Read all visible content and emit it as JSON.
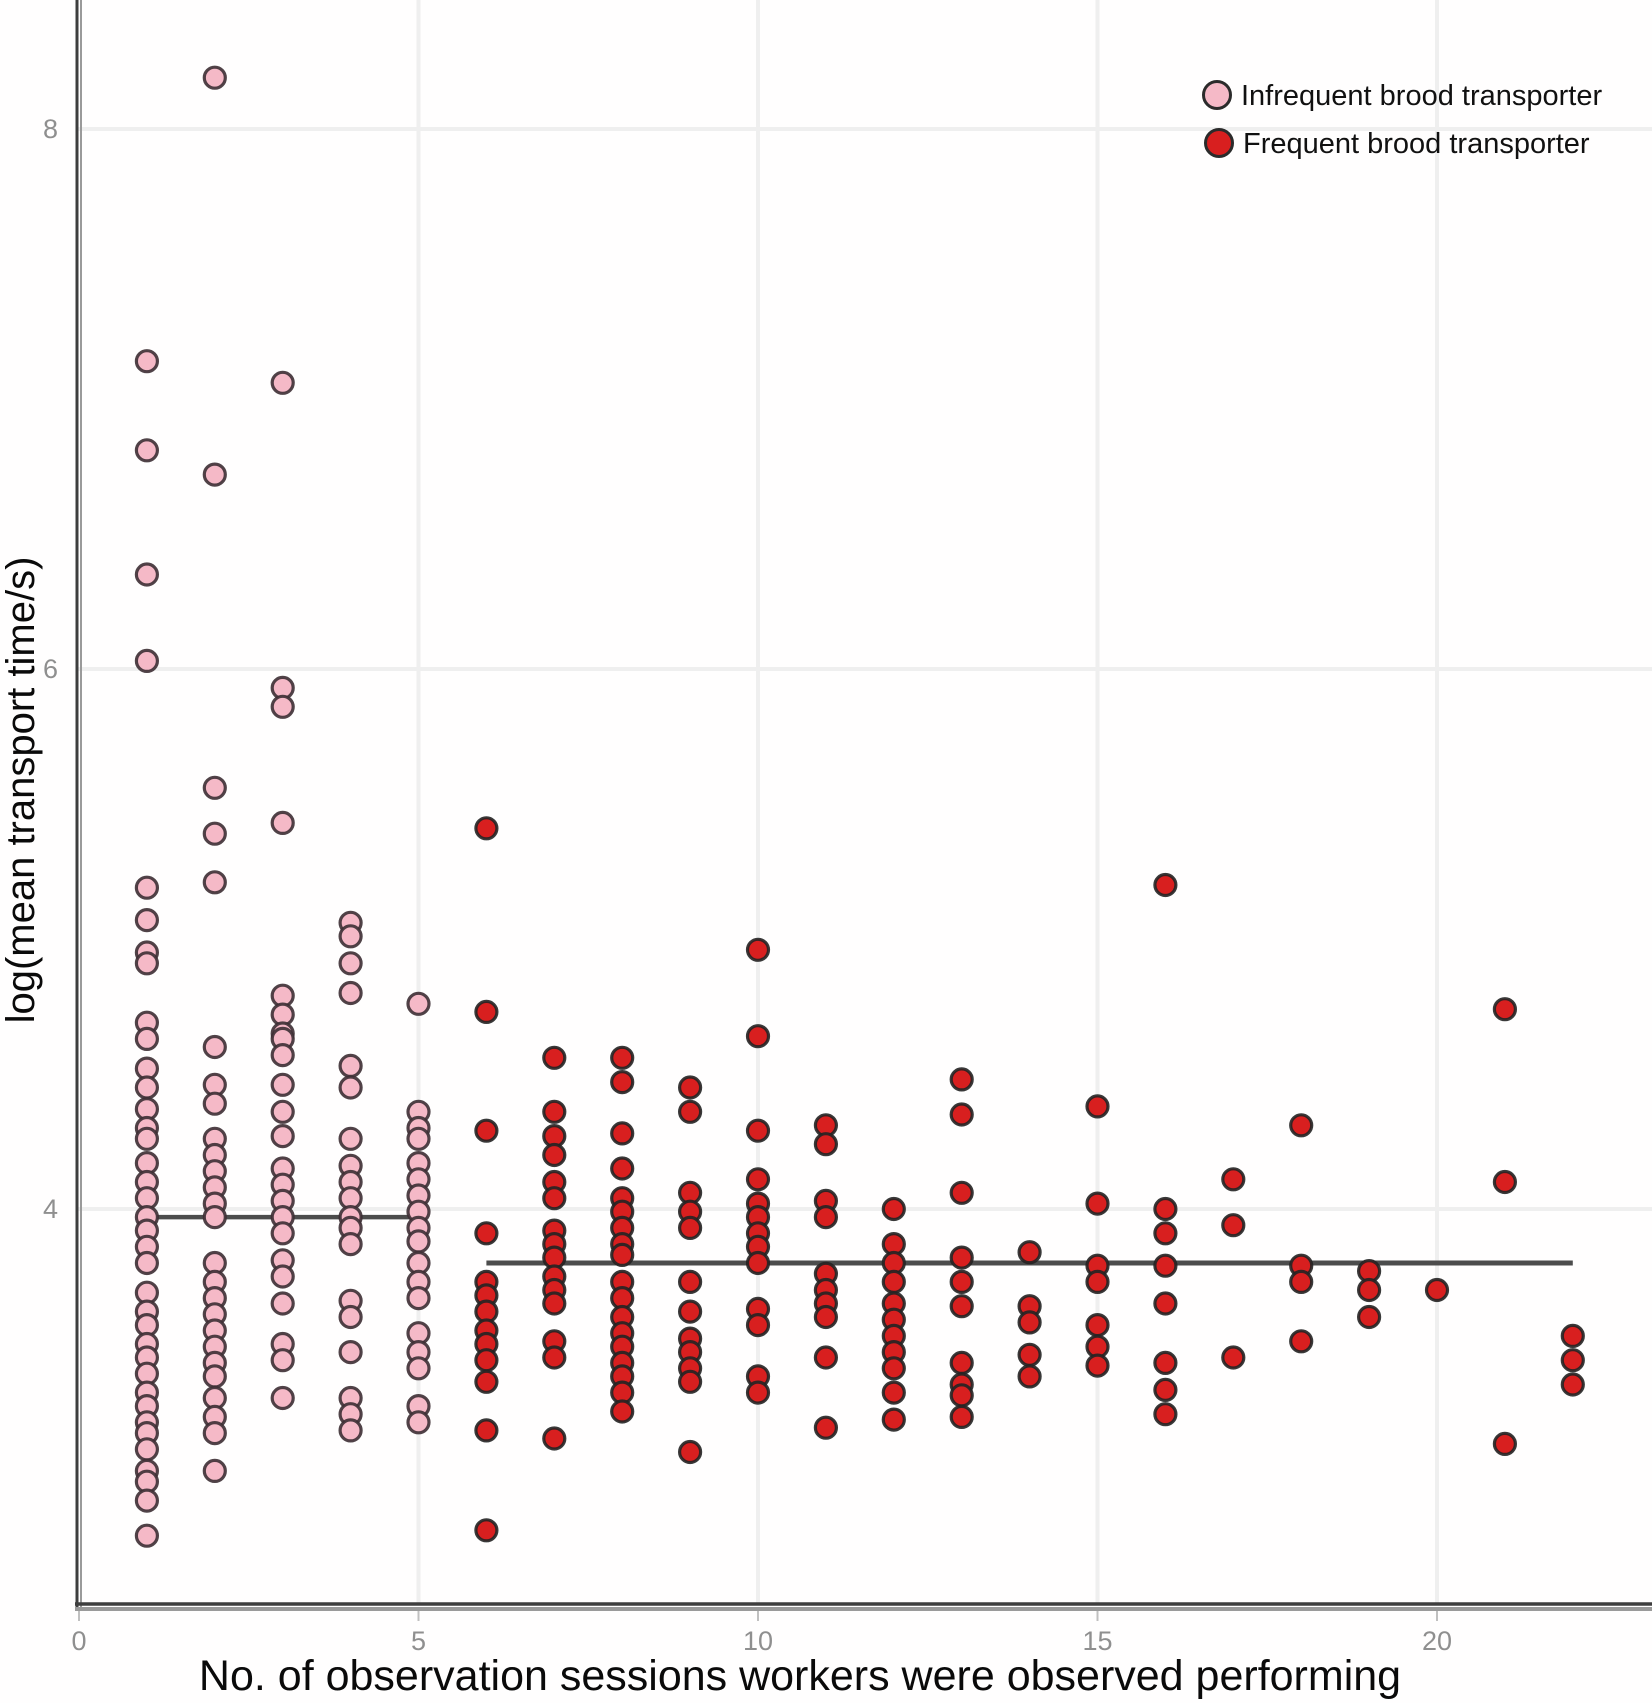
{
  "chart_data": {
    "type": "scatter",
    "title": "",
    "xlabel": "No. of observation sessions workers were observed performing",
    "ylabel": "log(mean transport time/s)",
    "xlim": [
      -0.05,
      23.2
    ],
    "ylim": [
      2.5,
      8.45
    ],
    "x_ticks": [
      0,
      5,
      10,
      15,
      20
    ],
    "x_tick_labels": [
      "0",
      "5",
      "10",
      "15",
      "20"
    ],
    "y_ticks": [
      8,
      6,
      4
    ],
    "y_tick_labels": [
      "8",
      "6",
      "4"
    ],
    "grid": true,
    "legend_position": "top-right",
    "colors": {
      "infrequent_fill": "#f5b9c7",
      "infrequent_stroke": "#3d2f34",
      "frequent_fill": "#d81f1f",
      "frequent_stroke": "#242424",
      "mean_line": "#4c4c4c",
      "gridline": "#efefef",
      "axis_dark": "#3e3e3e",
      "axis_light": "#9a9a9a",
      "tick_text": "#8f8f8f"
    },
    "series": [
      {
        "name": "Infrequent brood transporter",
        "color": "#f5b9c7",
        "points": [
          [
            1,
            7.14
          ],
          [
            1,
            6.81
          ],
          [
            1,
            6.35
          ],
          [
            1,
            6.03
          ],
          [
            1,
            5.19
          ],
          [
            1,
            5.07
          ],
          [
            1,
            4.95
          ],
          [
            1,
            4.91
          ],
          [
            1,
            4.69
          ],
          [
            1,
            4.63
          ],
          [
            1,
            4.52
          ],
          [
            1,
            4.45
          ],
          [
            1,
            4.37
          ],
          [
            1,
            4.3
          ],
          [
            1,
            4.26
          ],
          [
            1,
            4.17
          ],
          [
            1,
            4.1
          ],
          [
            1,
            4.04
          ],
          [
            1,
            3.97
          ],
          [
            1,
            3.92
          ],
          [
            1,
            3.86
          ],
          [
            1,
            3.8
          ],
          [
            1,
            3.69
          ],
          [
            1,
            3.62
          ],
          [
            1,
            3.57
          ],
          [
            1,
            3.5
          ],
          [
            1,
            3.45
          ],
          [
            1,
            3.39
          ],
          [
            1,
            3.32
          ],
          [
            1,
            3.27
          ],
          [
            1,
            3.21
          ],
          [
            1,
            3.17
          ],
          [
            1,
            3.11
          ],
          [
            1,
            3.03
          ],
          [
            1,
            2.99
          ],
          [
            1,
            2.92
          ],
          [
            1,
            2.79
          ],
          [
            2,
            8.19
          ],
          [
            2,
            6.72
          ],
          [
            2,
            5.56
          ],
          [
            2,
            5.39
          ],
          [
            2,
            5.21
          ],
          [
            2,
            4.6
          ],
          [
            2,
            4.46
          ],
          [
            2,
            4.39
          ],
          [
            2,
            4.26
          ],
          [
            2,
            4.2
          ],
          [
            2,
            4.14
          ],
          [
            2,
            4.08
          ],
          [
            2,
            4.02
          ],
          [
            2,
            3.97
          ],
          [
            2,
            3.8
          ],
          [
            2,
            3.73
          ],
          [
            2,
            3.67
          ],
          [
            2,
            3.61
          ],
          [
            2,
            3.55
          ],
          [
            2,
            3.49
          ],
          [
            2,
            3.43
          ],
          [
            2,
            3.38
          ],
          [
            2,
            3.3
          ],
          [
            2,
            3.23
          ],
          [
            2,
            3.17
          ],
          [
            2,
            3.03
          ],
          [
            3,
            7.06
          ],
          [
            3,
            5.93
          ],
          [
            3,
            5.86
          ],
          [
            3,
            5.43
          ],
          [
            3,
            4.79
          ],
          [
            3,
            4.72
          ],
          [
            3,
            4.65
          ],
          [
            3,
            4.63
          ],
          [
            3,
            4.57
          ],
          [
            3,
            4.46
          ],
          [
            3,
            4.36
          ],
          [
            3,
            4.27
          ],
          [
            3,
            4.15
          ],
          [
            3,
            4.09
          ],
          [
            3,
            4.03
          ],
          [
            3,
            3.97
          ],
          [
            3,
            3.91
          ],
          [
            3,
            3.81
          ],
          [
            3,
            3.75
          ],
          [
            3,
            3.65
          ],
          [
            3,
            3.5
          ],
          [
            3,
            3.44
          ],
          [
            3,
            3.3
          ],
          [
            4,
            5.06
          ],
          [
            4,
            5.01
          ],
          [
            4,
            4.91
          ],
          [
            4,
            4.8
          ],
          [
            4,
            4.53
          ],
          [
            4,
            4.45
          ],
          [
            4,
            4.26
          ],
          [
            4,
            4.16
          ],
          [
            4,
            4.1
          ],
          [
            4,
            4.04
          ],
          [
            4,
            3.97
          ],
          [
            4,
            3.93
          ],
          [
            4,
            3.87
          ],
          [
            4,
            3.66
          ],
          [
            4,
            3.6
          ],
          [
            4,
            3.47
          ],
          [
            4,
            3.3
          ],
          [
            4,
            3.24
          ],
          [
            4,
            3.18
          ],
          [
            5,
            4.76
          ],
          [
            5,
            4.36
          ],
          [
            5,
            4.3
          ],
          [
            5,
            4.26
          ],
          [
            5,
            4.17
          ],
          [
            5,
            4.11
          ],
          [
            5,
            4.05
          ],
          [
            5,
            3.99
          ],
          [
            5,
            3.93
          ],
          [
            5,
            3.88
          ],
          [
            5,
            3.8
          ],
          [
            5,
            3.73
          ],
          [
            5,
            3.67
          ],
          [
            5,
            3.54
          ],
          [
            5,
            3.47
          ],
          [
            5,
            3.41
          ],
          [
            5,
            3.27
          ],
          [
            5,
            3.21
          ]
        ]
      },
      {
        "name": "Frequent brood transporter",
        "color": "#d81f1f",
        "points": [
          [
            6,
            5.41
          ],
          [
            6,
            4.73
          ],
          [
            6,
            4.29
          ],
          [
            6,
            3.91
          ],
          [
            6,
            3.73
          ],
          [
            6,
            3.68
          ],
          [
            6,
            3.62
          ],
          [
            6,
            3.55
          ],
          [
            6,
            3.5
          ],
          [
            6,
            3.44
          ],
          [
            6,
            3.36
          ],
          [
            6,
            3.18
          ],
          [
            6,
            2.81
          ],
          [
            7,
            4.56
          ],
          [
            7,
            4.36
          ],
          [
            7,
            4.27
          ],
          [
            7,
            4.2
          ],
          [
            7,
            4.1
          ],
          [
            7,
            4.04
          ],
          [
            7,
            3.92
          ],
          [
            7,
            3.87
          ],
          [
            7,
            3.82
          ],
          [
            7,
            3.75
          ],
          [
            7,
            3.7
          ],
          [
            7,
            3.65
          ],
          [
            7,
            3.51
          ],
          [
            7,
            3.45
          ],
          [
            7,
            3.15
          ],
          [
            8,
            4.56
          ],
          [
            8,
            4.47
          ],
          [
            8,
            4.28
          ],
          [
            8,
            4.15
          ],
          [
            8,
            4.04
          ],
          [
            8,
            3.99
          ],
          [
            8,
            3.93
          ],
          [
            8,
            3.87
          ],
          [
            8,
            3.83
          ],
          [
            8,
            3.73
          ],
          [
            8,
            3.67
          ],
          [
            8,
            3.6
          ],
          [
            8,
            3.54
          ],
          [
            8,
            3.49
          ],
          [
            8,
            3.43
          ],
          [
            8,
            3.38
          ],
          [
            8,
            3.32
          ],
          [
            8,
            3.25
          ],
          [
            9,
            4.45
          ],
          [
            9,
            4.36
          ],
          [
            9,
            4.06
          ],
          [
            9,
            3.99
          ],
          [
            9,
            3.93
          ],
          [
            9,
            3.73
          ],
          [
            9,
            3.62
          ],
          [
            9,
            3.52
          ],
          [
            9,
            3.47
          ],
          [
            9,
            3.41
          ],
          [
            9,
            3.36
          ],
          [
            9,
            3.1
          ],
          [
            10,
            4.96
          ],
          [
            10,
            4.64
          ],
          [
            10,
            4.29
          ],
          [
            10,
            4.11
          ],
          [
            10,
            4.02
          ],
          [
            10,
            3.97
          ],
          [
            10,
            3.91
          ],
          [
            10,
            3.86
          ],
          [
            10,
            3.8
          ],
          [
            10,
            3.63
          ],
          [
            10,
            3.57
          ],
          [
            10,
            3.38
          ],
          [
            10,
            3.32
          ],
          [
            11,
            4.31
          ],
          [
            11,
            4.24
          ],
          [
            11,
            4.03
          ],
          [
            11,
            3.97
          ],
          [
            11,
            3.76
          ],
          [
            11,
            3.7
          ],
          [
            11,
            3.65
          ],
          [
            11,
            3.6
          ],
          [
            11,
            3.45
          ],
          [
            11,
            3.19
          ],
          [
            12,
            4.0
          ],
          [
            12,
            3.87
          ],
          [
            12,
            3.8
          ],
          [
            12,
            3.73
          ],
          [
            12,
            3.65
          ],
          [
            12,
            3.59
          ],
          [
            12,
            3.53
          ],
          [
            12,
            3.47
          ],
          [
            12,
            3.41
          ],
          [
            12,
            3.32
          ],
          [
            12,
            3.22
          ],
          [
            13,
            4.48
          ],
          [
            13,
            4.35
          ],
          [
            13,
            4.06
          ],
          [
            13,
            3.82
          ],
          [
            13,
            3.73
          ],
          [
            13,
            3.64
          ],
          [
            13,
            3.43
          ],
          [
            13,
            3.35
          ],
          [
            13,
            3.31
          ],
          [
            13,
            3.23
          ],
          [
            14,
            3.84
          ],
          [
            14,
            3.64
          ],
          [
            14,
            3.58
          ],
          [
            14,
            3.46
          ],
          [
            14,
            3.38
          ],
          [
            15,
            4.38
          ],
          [
            15,
            4.02
          ],
          [
            15,
            3.79
          ],
          [
            15,
            3.73
          ],
          [
            15,
            3.57
          ],
          [
            15,
            3.49
          ],
          [
            15,
            3.42
          ],
          [
            16,
            5.2
          ],
          [
            16,
            4.0
          ],
          [
            16,
            3.91
          ],
          [
            16,
            3.79
          ],
          [
            16,
            3.65
          ],
          [
            16,
            3.43
          ],
          [
            16,
            3.33
          ],
          [
            16,
            3.24
          ],
          [
            17,
            4.11
          ],
          [
            17,
            3.94
          ],
          [
            17,
            3.45
          ],
          [
            18,
            4.31
          ],
          [
            18,
            3.79
          ],
          [
            18,
            3.73
          ],
          [
            18,
            3.51
          ],
          [
            19,
            3.77
          ],
          [
            19,
            3.7
          ],
          [
            19,
            3.6
          ],
          [
            20,
            3.7
          ],
          [
            21,
            4.74
          ],
          [
            21,
            4.1
          ],
          [
            21,
            3.13
          ],
          [
            22,
            3.53
          ],
          [
            22,
            3.44
          ],
          [
            22,
            3.35
          ]
        ]
      }
    ],
    "mean_lines": [
      {
        "series": "Infrequent brood transporter",
        "x_start": 1,
        "x_end": 5,
        "y": 3.97
      },
      {
        "series": "Frequent brood transporter",
        "x_start": 6,
        "x_end": 22,
        "y": 3.8
      }
    ]
  },
  "legend": {
    "items": [
      {
        "label": "Infrequent brood transporter",
        "swatch": "pink-circle"
      },
      {
        "label": "Frequent brood transporter",
        "swatch": "red-circle"
      }
    ]
  }
}
